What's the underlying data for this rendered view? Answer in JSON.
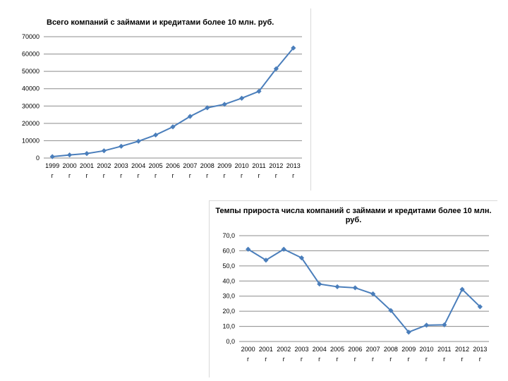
{
  "charts": [
    {
      "title": "Всего компаний с займами и кредитами более 10 млн. руб."
    },
    {
      "title": "Темпы прироста числа компаний с займами и кредитами более 10 млн. руб."
    }
  ],
  "chart_data": [
    {
      "type": "line",
      "title": "Всего компаний с займами и кредитами более 10 млн. руб.",
      "xlabel": "",
      "ylabel": "",
      "categories": [
        "1999 г",
        "2000 г",
        "2001 г",
        "2002 г",
        "2003 г",
        "2004 г",
        "2005 г",
        "2006 г",
        "2007 г",
        "2008 г",
        "2009 г",
        "2010 г",
        "2011 г",
        "2012 г",
        "2013 г"
      ],
      "tick_years": [
        "1999",
        "2000",
        "2001",
        "2002",
        "2003",
        "2004",
        "2005",
        "2006",
        "2007",
        "2008",
        "2009",
        "2010",
        "2011",
        "2012",
        "2013"
      ],
      "tick_suffix": "г",
      "y_ticks": [
        "0",
        "10000",
        "20000",
        "30000",
        "40000",
        "50000",
        "60000",
        "70000"
      ],
      "ylim": [
        0,
        70000
      ],
      "grid": true,
      "legend": "none",
      "color": "#4a7ebb",
      "series": [
        {
          "values": [
            800,
            1800,
            2600,
            4200,
            6800,
            9700,
            13300,
            18000,
            24000,
            29000,
            31000,
            34500,
            38500,
            51500,
            63500
          ]
        }
      ]
    },
    {
      "type": "line",
      "title": "Темпы прироста числа компаний с займами и кредитами более 10 млн. руб.",
      "xlabel": "",
      "ylabel": "",
      "categories": [
        "2000 г",
        "2001 г",
        "2002 г",
        "2003 г",
        "2004 г",
        "2005 г",
        "2006 г",
        "2007 г",
        "2008 г",
        "2009 г",
        "2010 г",
        "2011 г",
        "2012 г",
        "2013 г"
      ],
      "tick_years": [
        "2000",
        "2001",
        "2002",
        "2003",
        "2004",
        "2005",
        "2006",
        "2007",
        "2008",
        "2009",
        "2010",
        "2011",
        "2012",
        "2013"
      ],
      "tick_suffix": "г",
      "y_ticks": [
        "0,0",
        "10,0",
        "20,0",
        "30,0",
        "40,0",
        "50,0",
        "60,0",
        "70,0"
      ],
      "ylim": [
        0,
        70
      ],
      "grid": true,
      "legend": "none",
      "color": "#4a7ebb",
      "series": [
        {
          "values": [
            61.0,
            53.8,
            61.0,
            55.3,
            38.0,
            36.2,
            35.5,
            31.5,
            20.5,
            6.2,
            10.8,
            11.0,
            34.5,
            23.0
          ]
        }
      ]
    }
  ]
}
